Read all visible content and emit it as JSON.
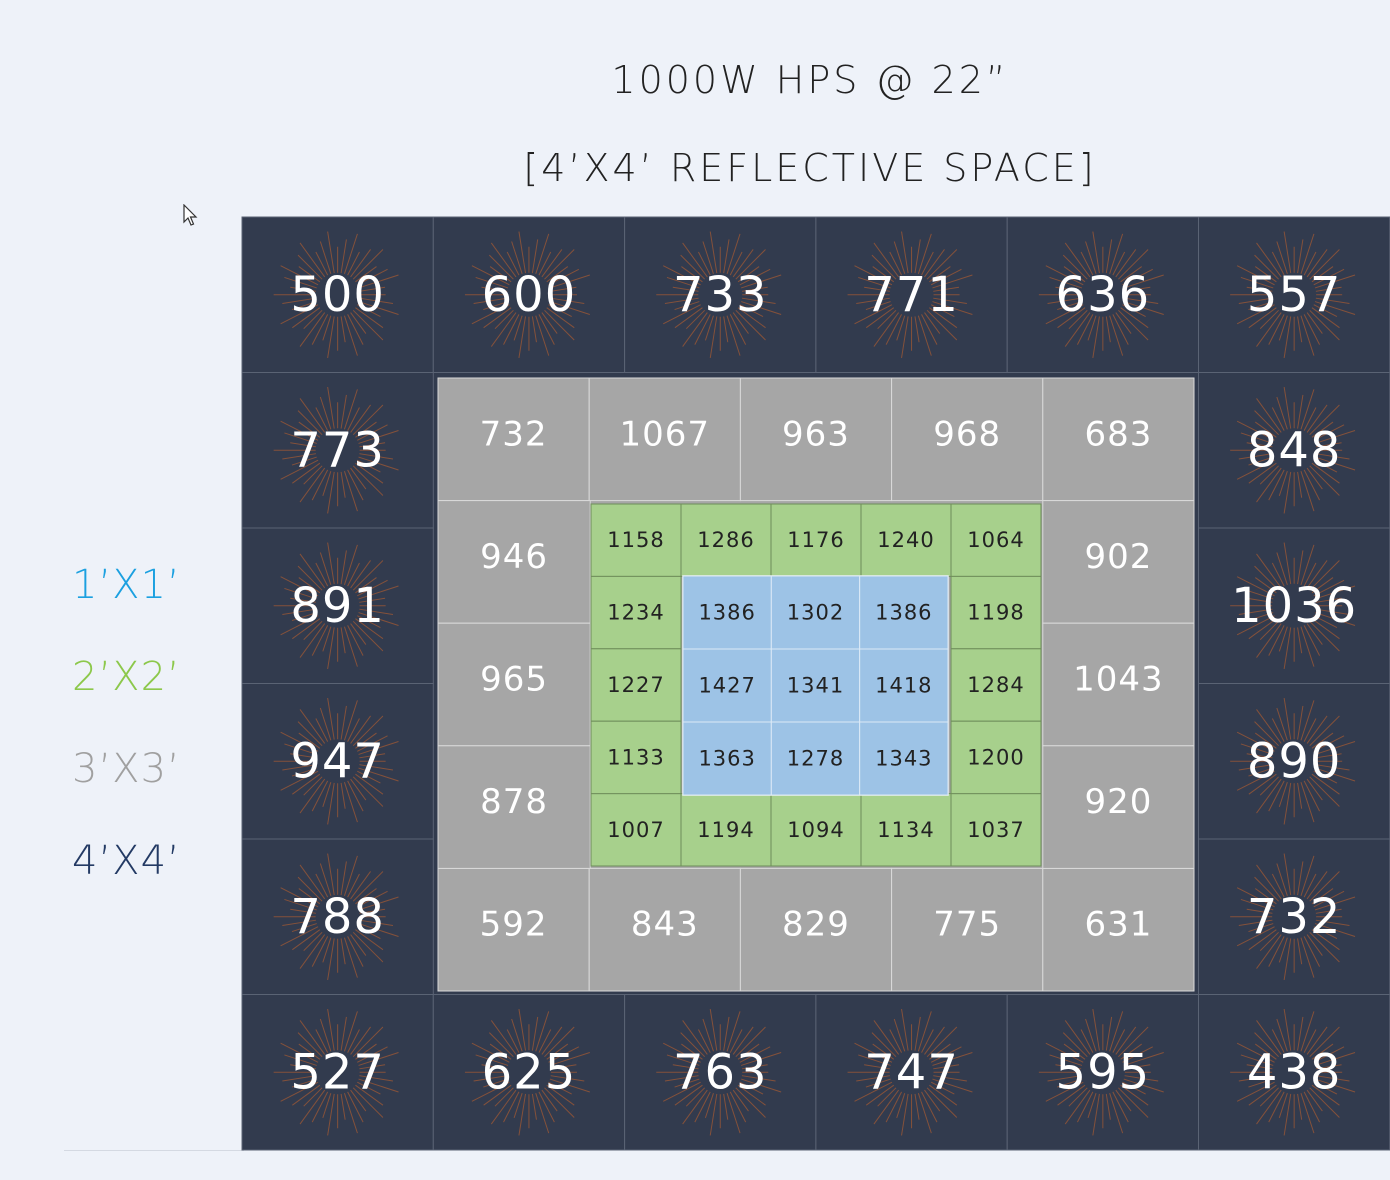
{
  "title_line1": "1000W HPS @ 22”",
  "title_line2": "[4’X4’ REFLECTIVE SPACE]",
  "legend": [
    {
      "label": "1’X1’",
      "color": "#1ba0e0"
    },
    {
      "label": "2’X2’",
      "color": "#8cc84b"
    },
    {
      "label": "3’X3’",
      "color": "#a0a0a0"
    },
    {
      "label": "4’X4’",
      "color": "#233a64"
    }
  ],
  "colors": {
    "outer": "#323b4e",
    "middle": "#a6a6a6",
    "inner": "#a7d08c",
    "center": "#9dc3e6",
    "burst": "#c8632a"
  },
  "chart_data": {
    "type": "heatmap",
    "title": "1000W HPS @ 22”",
    "subtitle": "[4’X4’ REFLECTIVE SPACE]",
    "outer_4x4": {
      "top": [
        500,
        600,
        733,
        771,
        636,
        557
      ],
      "left": [
        773,
        891,
        947,
        788
      ],
      "right": [
        848,
        1036,
        890,
        732
      ],
      "bottom": [
        527,
        625,
        763,
        747,
        595,
        438
      ]
    },
    "ring_3x3": {
      "top": [
        732,
        1067,
        963,
        968,
        683
      ],
      "left": [
        946,
        965,
        878
      ],
      "right": [
        902,
        1043,
        920
      ],
      "bottom": [
        592,
        843,
        829,
        775,
        631
      ]
    },
    "ring_2x2": {
      "top": [
        1158,
        1286,
        1176,
        1240,
        1064
      ],
      "left": [
        1234,
        1227,
        1133
      ],
      "right": [
        1198,
        1284,
        1200
      ],
      "bottom": [
        1007,
        1194,
        1094,
        1134,
        1037
      ]
    },
    "center_1x1": [
      [
        1386,
        1302,
        1386
      ],
      [
        1427,
        1341,
        1418
      ],
      [
        1363,
        1278,
        1343
      ]
    ]
  }
}
